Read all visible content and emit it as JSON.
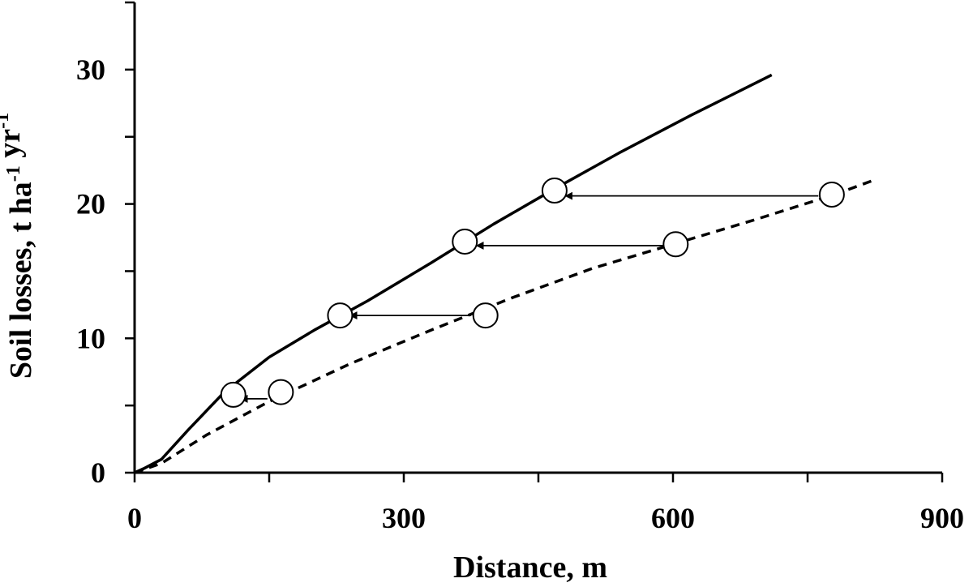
{
  "chart_data": {
    "type": "line",
    "xlabel": "Distance, m",
    "ylabel": {
      "parts": [
        {
          "text": "Soil losses, t ha",
          "sup": false
        },
        {
          "text": "-1",
          "sup": true
        },
        {
          "text": " yr",
          "sup": false
        },
        {
          "text": "-1",
          "sup": true
        }
      ]
    },
    "xlim": [
      0,
      900
    ],
    "ylim": [
      0,
      35
    ],
    "x_ticks": [
      0,
      300,
      600,
      900
    ],
    "x_minor_ticks": [
      150,
      450,
      750
    ],
    "y_ticks": [
      0,
      10,
      20,
      30
    ],
    "y_minor_ticks": [
      5,
      15,
      25,
      35
    ],
    "x_tick_labels": [
      "0",
      "300",
      "600",
      "900"
    ],
    "y_tick_labels": [
      "0",
      "10",
      "20",
      "30"
    ],
    "grid": false,
    "legend": "none",
    "series": [
      {
        "style": "solid",
        "color": "#000000",
        "x": [
          0,
          10,
          30,
          60,
          100,
          150,
          200,
          260,
          330,
          400,
          470,
          540,
          620,
          710
        ],
        "y": [
          0,
          0.3,
          1.0,
          3.2,
          6.0,
          8.6,
          10.6,
          12.8,
          15.6,
          18.5,
          21.2,
          23.8,
          26.6,
          29.6
        ]
      },
      {
        "style": "dashed",
        "color": "#000000",
        "x": [
          0,
          30,
          80,
          150,
          240,
          330,
          420,
          510,
          600,
          690,
          780,
          825
        ],
        "y": [
          0,
          0.7,
          2.8,
          5.3,
          8.1,
          10.6,
          13.0,
          15.2,
          17.0,
          18.8,
          20.7,
          21.8
        ]
      }
    ],
    "markers": [
      {
        "shape": "circle",
        "x": 110,
        "y": 5.8
      },
      {
        "shape": "circle",
        "x": 163,
        "y": 6.0
      },
      {
        "shape": "circle",
        "x": 229,
        "y": 11.7
      },
      {
        "shape": "circle",
        "x": 391,
        "y": 11.7
      },
      {
        "shape": "circle",
        "x": 368,
        "y": 17.2
      },
      {
        "shape": "circle",
        "x": 603,
        "y": 17.0
      },
      {
        "shape": "circle",
        "x": 468,
        "y": 21.0
      },
      {
        "shape": "circle",
        "x": 777,
        "y": 20.7
      }
    ],
    "arrows": [
      {
        "from": [
          148,
          5.5
        ],
        "to": [
          118,
          5.5
        ]
      },
      {
        "from": [
          375,
          11.7
        ],
        "to": [
          240,
          11.7
        ]
      },
      {
        "from": [
          590,
          16.9
        ],
        "to": [
          381,
          16.9
        ]
      },
      {
        "from": [
          762,
          20.6
        ],
        "to": [
          480,
          20.6
        ]
      }
    ]
  }
}
